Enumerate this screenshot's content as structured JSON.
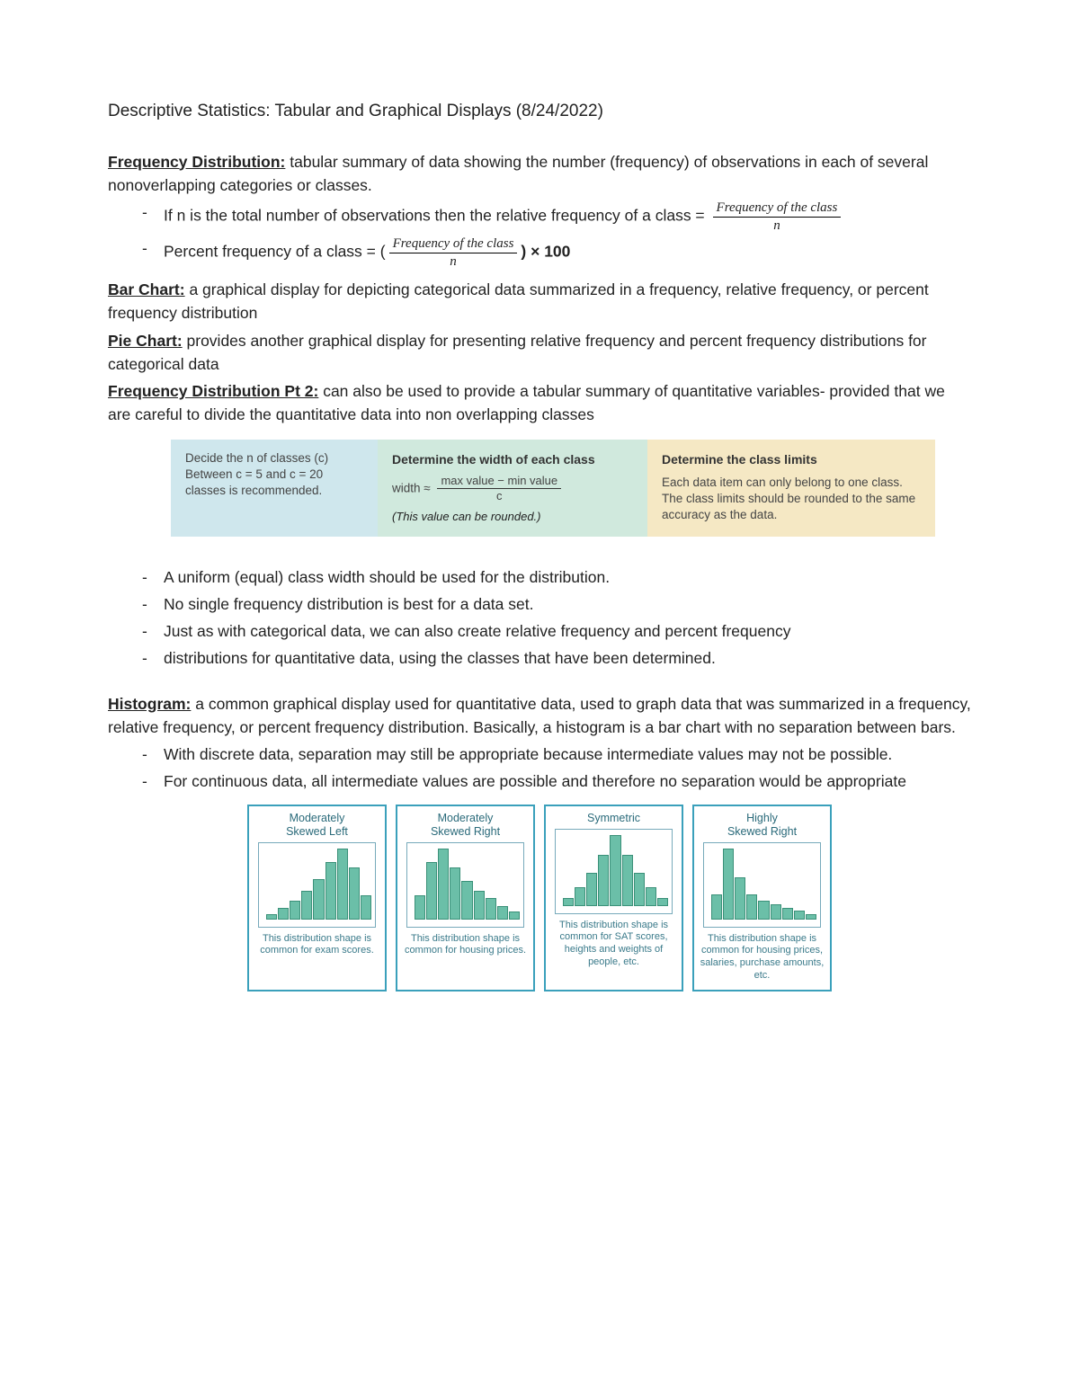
{
  "title": "Descriptive Statistics: Tabular and Graphical Displays (8/24/2022)",
  "freq_dist": {
    "term": "Frequency Distribution:",
    "def": " tabular summary of data showing the number (frequency) of observations in each of several nonoverlapping categories or classes.",
    "b1_pre": "If n is the total number of observations then the relative frequency of a class = ",
    "b1_num": "Frequency of the class",
    "b1_den": "n",
    "b2_pre": "Percent frequency of a class = (",
    "b2_num": "Frequency of the class",
    "b2_den": "n",
    "b2_post": ")  ×  100"
  },
  "bar_chart": {
    "term": "Bar Chart:",
    "def": " a graphical display for depicting categorical data summarized in a frequency, relative frequency, or percent frequency distribution"
  },
  "pie_chart": {
    "term": "Pie Chart:",
    "def": " provides another graphical display for presenting relative frequency and percent frequency distributions for  categorical data"
  },
  "freq_dist2": {
    "term": "Frequency Distribution Pt 2:",
    "def": " can also be used to provide a tabular summary of quantitative variables- provided that we are careful to divide the quantitative data into non overlapping classes"
  },
  "steps": {
    "s1_line1": "Decide the n of classes (c)",
    "s1_line2": "Between c = 5 and c = 20 classes is recommended.",
    "s2_title": "Determine the width of each class",
    "s2_pre": "width ≈ ",
    "s2_num": "max value − min value",
    "s2_den": "c",
    "s2_note": "(This value can be rounded.)",
    "s3_title": "Determine the class limits",
    "s3_text": "Each data item can only belong to one class. The class limits should be rounded to the same accuracy as the data.",
    "colors": {
      "c1": "#cfe7ed",
      "c2": "#d0e9dd",
      "c3": "#f5e8c4"
    }
  },
  "notes": {
    "n1": "A uniform (equal) class width should be used for the distribution.",
    "n2": "No single frequency distribution is best for a data set.",
    "n3": "Just as with categorical data, we can also create relative frequency and percent frequency",
    "n4": "distributions for quantitative data, using the classes that have been determined."
  },
  "histogram": {
    "term": "Histogram:",
    "def": " a common graphical display used for quantitative data, used to graph data that was summarized in a frequency, relative frequency, or percent frequency distribution. Basically, a histogram is a bar chart with no separation between bars.",
    "b1": "With discrete data, separation may still be appropriate because intermediate values may not be possible.",
    "b2": "For continuous data, all intermediate values are possible and therefore no separation would be appropriate"
  },
  "hist_cards": [
    {
      "title": "Moderately\nSkewed Left",
      "bars": [
        5,
        12,
        20,
        30,
        42,
        60,
        75,
        55,
        25
      ],
      "caption": "This distribution shape is common for exam scores."
    },
    {
      "title": "Moderately\nSkewed Right",
      "bars": [
        25,
        60,
        75,
        55,
        40,
        30,
        22,
        14,
        8
      ],
      "caption": "This distribution shape is common for housing prices."
    },
    {
      "title": "Symmetric",
      "bars": [
        8,
        18,
        32,
        50,
        70,
        50,
        32,
        18,
        8
      ],
      "caption": "This distribution shape is common for SAT scores, heights and weights of people, etc."
    },
    {
      "title": "Highly\nSkewed Right",
      "bars": [
        30,
        85,
        50,
        30,
        22,
        18,
        14,
        10,
        6
      ],
      "caption": "This distribution shape is common for housing prices, salaries, purchase amounts, etc."
    }
  ],
  "hist_style": {
    "bar_color": "#6bbfa8",
    "bar_border": "#3a9078",
    "card_border": "#3aa0bb"
  }
}
